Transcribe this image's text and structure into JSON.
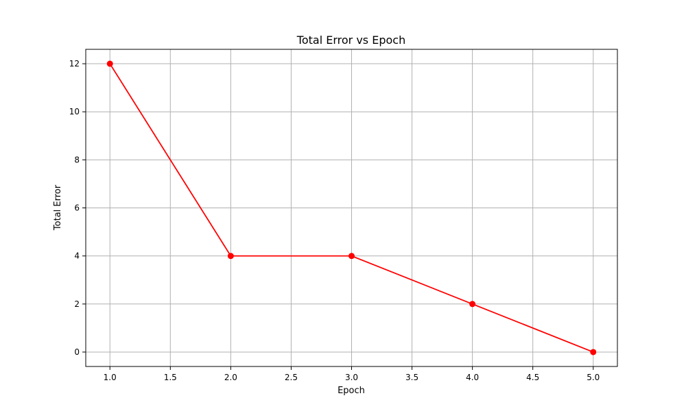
{
  "chart_data": {
    "type": "line",
    "title": "Total Error vs Epoch",
    "xlabel": "Epoch",
    "ylabel": "Total Error",
    "xlim": [
      0.8,
      5.2
    ],
    "ylim": [
      -0.6,
      12.6
    ],
    "xticks": [
      1.0,
      1.5,
      2.0,
      2.5,
      3.0,
      3.5,
      4.0,
      4.5,
      5.0
    ],
    "xtick_labels": [
      "1.0",
      "1.5",
      "2.0",
      "2.5",
      "3.0",
      "3.5",
      "4.0",
      "4.5",
      "5.0"
    ],
    "yticks": [
      0,
      2,
      4,
      6,
      8,
      10,
      12
    ],
    "ytick_labels": [
      "0",
      "2",
      "4",
      "6",
      "8",
      "10",
      "12"
    ],
    "grid": true,
    "series": [
      {
        "x": [
          1,
          2,
          3,
          4,
          5
        ],
        "y": [
          12,
          4,
          4,
          2,
          0
        ],
        "color": "#ff0000",
        "marker": "circle"
      }
    ]
  }
}
